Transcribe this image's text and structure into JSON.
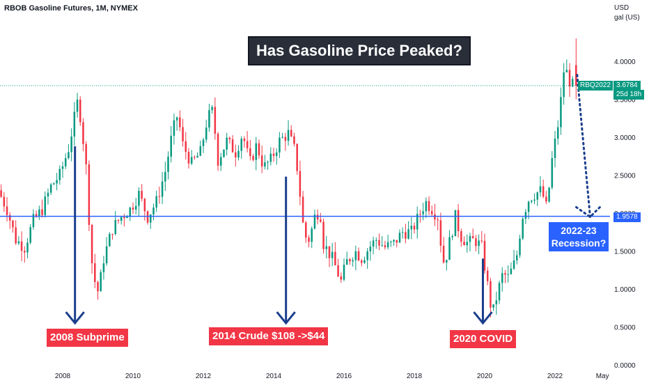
{
  "header": {
    "title": "RBOB Gasoline Futures, 1M, NYMEX"
  },
  "units": {
    "line1": "USD",
    "line2": "gal (US)"
  },
  "annotations": {
    "headline": "Has Gasoline Price Peaked?",
    "event_2008": "2008 Subprime",
    "event_2014": "2014 Crude $108 ->$44",
    "event_2020": "2020 COVID",
    "recession": "2022-23 Recession?"
  },
  "price_tag": {
    "symbol": "RBQ2022",
    "last": "3.6784",
    "countdown": "25d 18h"
  },
  "level_tag": {
    "value": "1.9578"
  },
  "colors": {
    "up": "#089981",
    "down": "#f23645",
    "line": "#2962ff",
    "arrow": "#1a3e8c"
  },
  "chart_data": {
    "type": "candlestick",
    "title": "RBOB Gasoline Futures, 1M, NYMEX",
    "ylabel": "USD / gal (US)",
    "ylim": [
      0,
      4.5
    ],
    "x_range": [
      2006.25,
      2023.3
    ],
    "x_ticks": [
      "2008",
      "2010",
      "2012",
      "2014",
      "2016",
      "2018",
      "2020",
      "2022",
      "May"
    ],
    "y_ticks": [
      "0.0000",
      "0.5000",
      "1.0000",
      "1.5000",
      "2.0000",
      "2.5000",
      "3.0000",
      "3.5000",
      "4.0000"
    ],
    "horizontal_line": 1.9578,
    "last_price": 3.6784,
    "close_path": [
      [
        2006.25,
        2.3
      ],
      [
        2006.5,
        2.05
      ],
      [
        2006.75,
        1.65
      ],
      [
        2007.0,
        1.55
      ],
      [
        2007.25,
        1.9
      ],
      [
        2007.5,
        2.05
      ],
      [
        2007.75,
        2.35
      ],
      [
        2008.0,
        2.5
      ],
      [
        2008.25,
        2.85
      ],
      [
        2008.5,
        3.45
      ],
      [
        2008.6,
        3.25
      ],
      [
        2008.75,
        2.6
      ],
      [
        2008.9,
        1.4
      ],
      [
        2009.0,
        1.1
      ],
      [
        2009.1,
        0.95
      ],
      [
        2009.25,
        1.4
      ],
      [
        2009.5,
        1.8
      ],
      [
        2009.75,
        1.95
      ],
      [
        2010.0,
        2.05
      ],
      [
        2010.25,
        2.25
      ],
      [
        2010.5,
        1.95
      ],
      [
        2010.75,
        2.15
      ],
      [
        2011.0,
        2.55
      ],
      [
        2011.2,
        3.05
      ],
      [
        2011.35,
        3.3
      ],
      [
        2011.5,
        2.9
      ],
      [
        2011.75,
        2.65
      ],
      [
        2012.0,
        2.8
      ],
      [
        2012.2,
        3.25
      ],
      [
        2012.35,
        3.35
      ],
      [
        2012.5,
        2.7
      ],
      [
        2012.75,
        2.95
      ],
      [
        2013.0,
        2.8
      ],
      [
        2013.2,
        3.05
      ],
      [
        2013.4,
        2.65
      ],
      [
        2013.6,
        2.9
      ],
      [
        2013.8,
        2.6
      ],
      [
        2014.0,
        2.7
      ],
      [
        2014.25,
        2.95
      ],
      [
        2014.5,
        3.05
      ],
      [
        2014.7,
        2.8
      ],
      [
        2014.8,
        2.4
      ],
      [
        2014.95,
        1.7
      ],
      [
        2015.1,
        1.65
      ],
      [
        2015.25,
        1.95
      ],
      [
        2015.4,
        2.05
      ],
      [
        2015.5,
        1.6
      ],
      [
        2015.75,
        1.4
      ],
      [
        2016.0,
        1.1
      ],
      [
        2016.15,
        1.35
      ],
      [
        2016.4,
        1.5
      ],
      [
        2016.6,
        1.4
      ],
      [
        2016.8,
        1.55
      ],
      [
        2017.0,
        1.65
      ],
      [
        2017.25,
        1.55
      ],
      [
        2017.5,
        1.6
      ],
      [
        2017.75,
        1.75
      ],
      [
        2018.0,
        1.75
      ],
      [
        2018.25,
        2.0
      ],
      [
        2018.4,
        2.15
      ],
      [
        2018.6,
        2.05
      ],
      [
        2018.75,
        1.95
      ],
      [
        2018.9,
        1.35
      ],
      [
        2019.0,
        1.45
      ],
      [
        2019.25,
        1.95
      ],
      [
        2019.4,
        1.7
      ],
      [
        2019.6,
        1.6
      ],
      [
        2019.8,
        1.65
      ],
      [
        2020.0,
        1.55
      ],
      [
        2020.15,
        1.1
      ],
      [
        2020.3,
        0.65
      ],
      [
        2020.45,
        0.95
      ],
      [
        2020.6,
        1.2
      ],
      [
        2020.75,
        1.15
      ],
      [
        2020.9,
        1.3
      ],
      [
        2021.0,
        1.45
      ],
      [
        2021.15,
        1.95
      ],
      [
        2021.35,
        2.2
      ],
      [
        2021.5,
        2.25
      ],
      [
        2021.7,
        2.3
      ],
      [
        2021.85,
        2.05
      ],
      [
        2022.0,
        2.7
      ],
      [
        2022.2,
        3.25
      ],
      [
        2022.35,
        3.95
      ],
      [
        2022.45,
        3.8
      ],
      [
        2022.55,
        3.68
      ]
    ]
  }
}
